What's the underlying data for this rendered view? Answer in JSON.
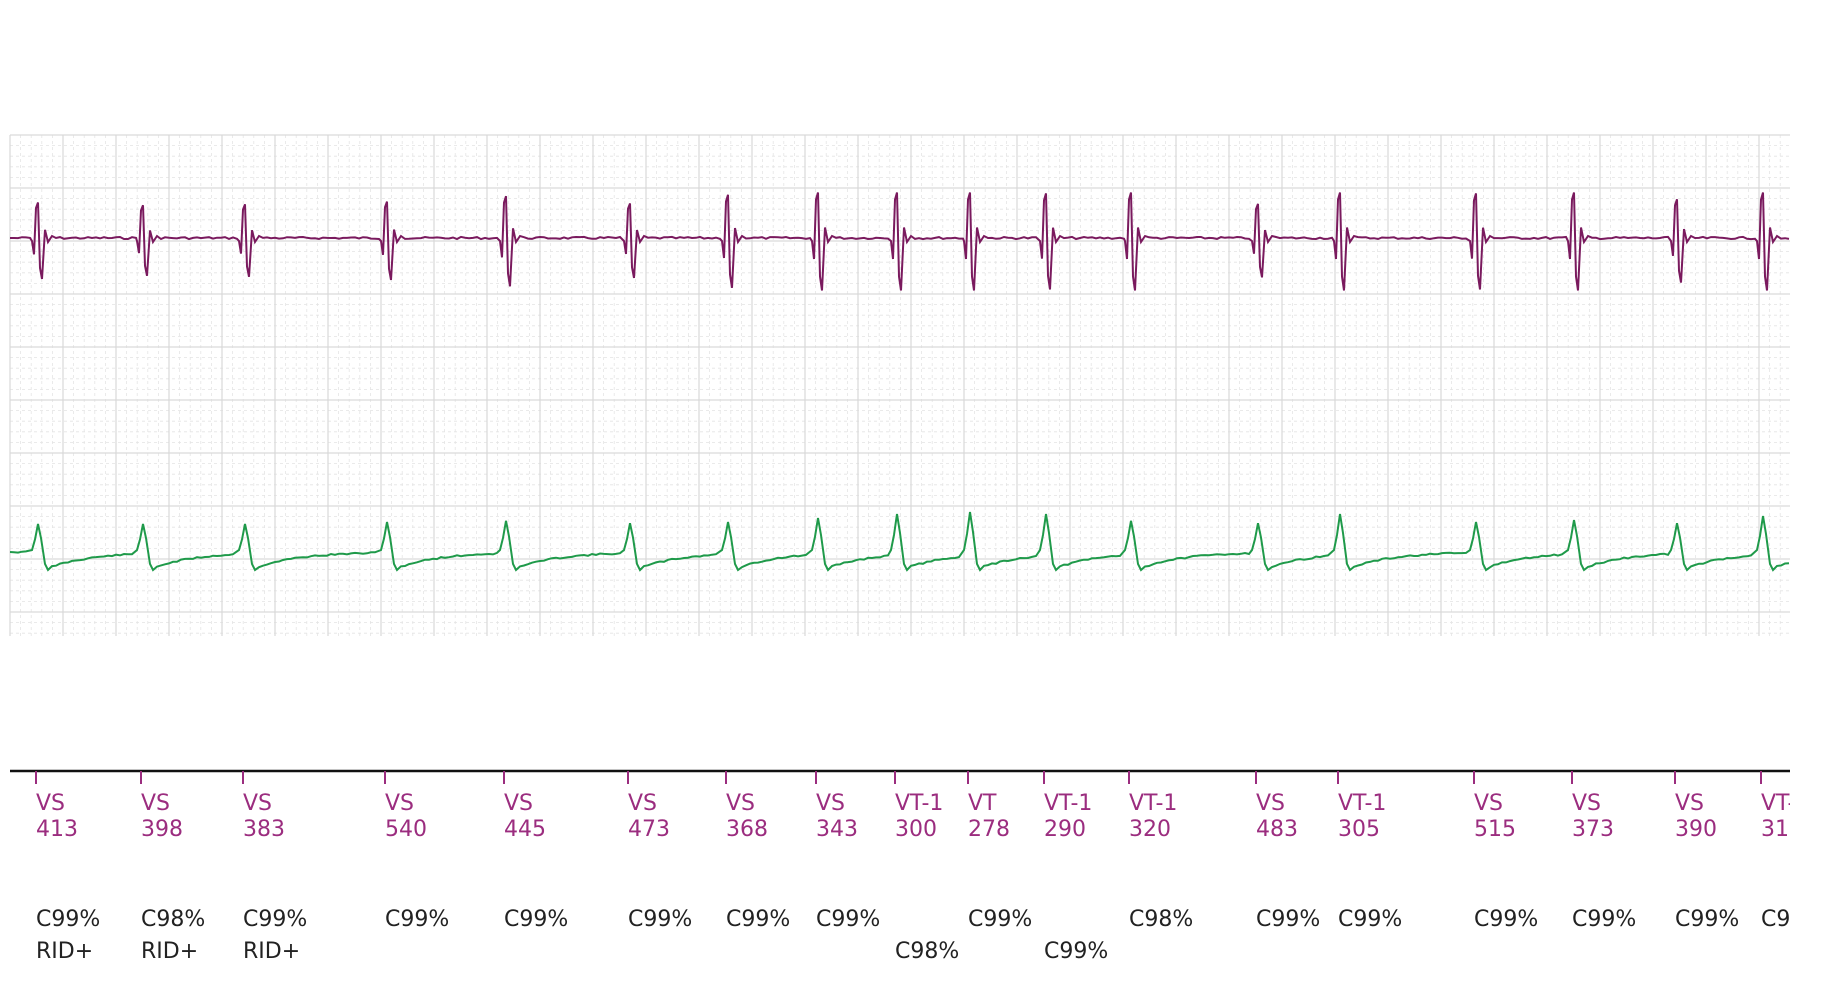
{
  "chart_data": {
    "type": "line",
    "title": "",
    "xlabel": "",
    "ylabel": "",
    "grid": true,
    "legend": "none",
    "colors": {
      "channel_a": "#7a1a5e",
      "channel_b": "#1f9a4a",
      "marker_text": "#9b2d7f",
      "class_text": "#222222",
      "grid": "#d9d9d9",
      "grid_minor": "#e4e4e4"
    },
    "series": [
      {
        "channel": "A",
        "waveform": "bipolar spike"
      },
      {
        "channel": "B",
        "waveform": "monophasic upstroke with undershoot"
      }
    ],
    "beats": [
      {
        "marker": "VS",
        "interval": "413",
        "class": "C99%",
        "extra": "RID+"
      },
      {
        "marker": "VS",
        "interval": "398",
        "class": "C98%",
        "extra": "RID+"
      },
      {
        "marker": "VS",
        "interval": "383",
        "class": "C99%",
        "extra": "RID+"
      },
      {
        "marker": "VS",
        "interval": "540",
        "class": "C99%",
        "extra": ""
      },
      {
        "marker": "VS",
        "interval": "445",
        "class": "C99%",
        "extra": ""
      },
      {
        "marker": "VS",
        "interval": "473",
        "class": "C99%",
        "extra": ""
      },
      {
        "marker": "VS",
        "interval": "368",
        "class": "C99%",
        "extra": ""
      },
      {
        "marker": "VS",
        "interval": "343",
        "class": "C99%",
        "extra": ""
      },
      {
        "marker": "VT-1",
        "interval": "300",
        "class": "",
        "extra": "C98%"
      },
      {
        "marker": "VT",
        "interval": "278",
        "class": "C99%",
        "extra": ""
      },
      {
        "marker": "VT-1",
        "interval": "290",
        "class": "",
        "extra": "C99%"
      },
      {
        "marker": "VT-1",
        "interval": "320",
        "class": "C98%",
        "extra": ""
      },
      {
        "marker": "VS",
        "interval": "483",
        "class": "C99%",
        "extra": ""
      },
      {
        "marker": "VT-1",
        "interval": "305",
        "class": "C99%",
        "extra": ""
      },
      {
        "marker": "VS",
        "interval": "515",
        "class": "C99%",
        "extra": ""
      },
      {
        "marker": "VS",
        "interval": "373",
        "class": "C99%",
        "extra": ""
      },
      {
        "marker": "VS",
        "interval": "390",
        "class": "C99%",
        "extra": ""
      },
      {
        "marker": "VT-",
        "interval": "31",
        "class": "C9",
        "extra": ""
      }
    ],
    "rel_amplitude_a": [
      0.78,
      0.72,
      0.74,
      0.8,
      0.92,
      0.76,
      0.95,
      1.0,
      1.0,
      1.0,
      0.98,
      1.0,
      0.75,
      1.0,
      0.98,
      1.0,
      0.85,
      1.0
    ],
    "rel_amplitude_b": [
      0.7,
      0.7,
      0.7,
      0.75,
      0.78,
      0.72,
      0.75,
      0.85,
      0.95,
      1.0,
      0.95,
      0.78,
      0.72,
      0.95,
      0.75,
      0.8,
      0.72,
      0.9
    ]
  }
}
